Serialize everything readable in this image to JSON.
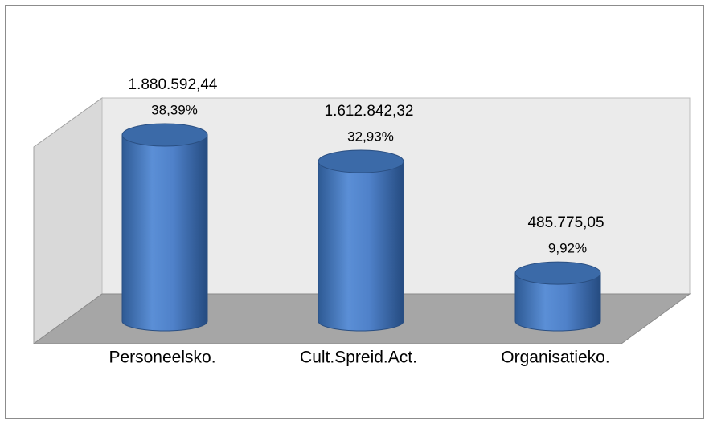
{
  "chart_data": {
    "type": "cylinder",
    "categories": [
      "Personeelsko.",
      "Cult.Spreid.Act.",
      "Organisatieko."
    ],
    "values": [
      1880592.44,
      1612842.32,
      485775.05
    ],
    "value_labels": [
      "1.880.592,44",
      "1.612.842,32",
      "485.775,05"
    ],
    "percentages": [
      38.39,
      32.93,
      9.92
    ],
    "percentage_labels": [
      "38,39%",
      "32,93%",
      "9,92%"
    ],
    "color": "#4f81bd"
  }
}
